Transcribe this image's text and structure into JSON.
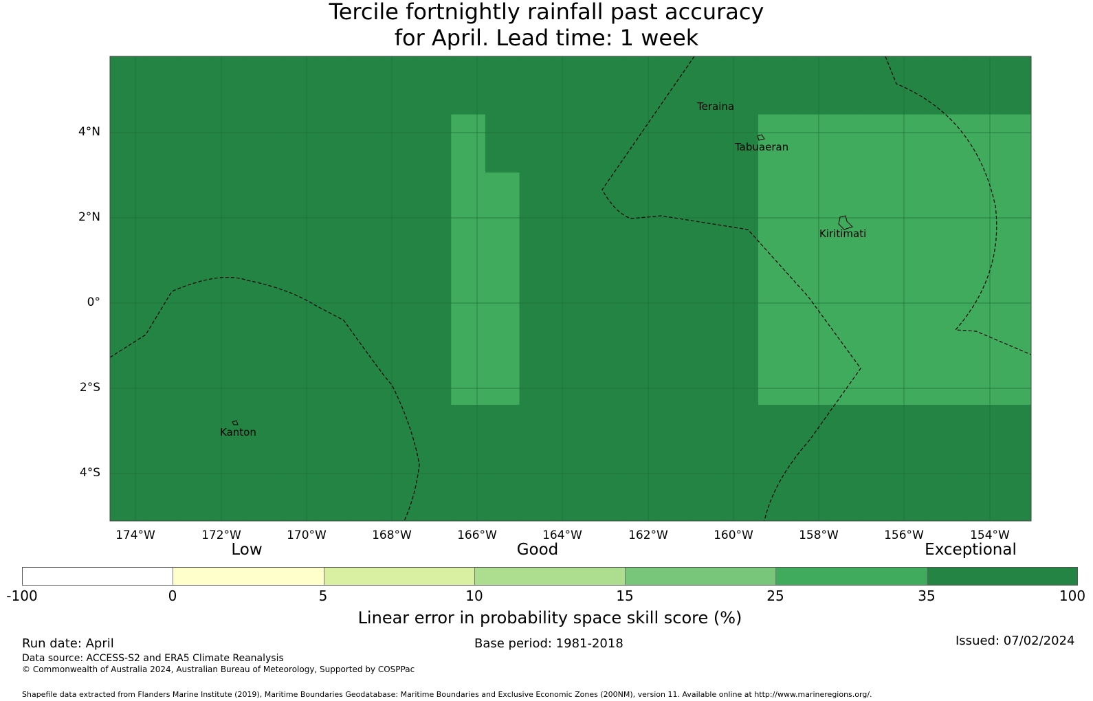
{
  "title": {
    "line1": "Tercile fortnightly rainfall past accuracy",
    "line2": "for April. Lead time: 1 week"
  },
  "map": {
    "lat_labels": [
      "4°N",
      "2°N",
      "0°",
      "2°S",
      "4°S"
    ],
    "lon_labels": [
      "174°W",
      "172°W",
      "170°W",
      "168°W",
      "166°W",
      "164°W",
      "162°W",
      "160°W",
      "158°W",
      "156°W",
      "154°W"
    ],
    "place_labels": [
      "Teraina",
      "Tabuaeran",
      "Kiritimati",
      "Kanton"
    ],
    "palette": [
      "#ffffff",
      "#ffffcc",
      "#d9f0a3",
      "#addd8e",
      "#78c679",
      "#41ab5d",
      "#238443"
    ],
    "grid_rows": [
      "666666666666666666666666666",
      "666666666656666666655555555",
      "666666666655666666655555555",
      "666666666655666666655555555",
      "666666666655666666655555555",
      "666666666655666666655555555",
      "666666666666666666666666666",
      "666666666666666666666666666"
    ]
  },
  "colorbar": {
    "category_labels": [
      "Low",
      "Good",
      "Exceptional"
    ],
    "colors": [
      "#ffffff",
      "#ffffcc",
      "#d9f0a3",
      "#addd8e",
      "#78c679",
      "#41ab5d",
      "#238443"
    ],
    "tick_labels": [
      "-100",
      "0",
      "5",
      "10",
      "15",
      "25",
      "35",
      "100"
    ],
    "label": "Linear error in probability space skill score (%)"
  },
  "footer": {
    "run_date": "Run date: April",
    "base_period": "Base period: 1981-2018",
    "issued": "Issued: 07/02/2024",
    "data_source": "Data source: ACCESS-S2 and ERA5 Climate Reanalysis",
    "copyright": "© Commonwealth of Australia 2024, Australian Bureau of Meteorology, Supported by COSPPac",
    "shapefile": "Shapefile data extracted from Flanders Marine Institute (2019), Maritime Boundaries Geodatabase: Maritime Boundaries and Exclusive Economic Zones (200NM), version 11. Available online at http://www.marineregions.org/."
  }
}
